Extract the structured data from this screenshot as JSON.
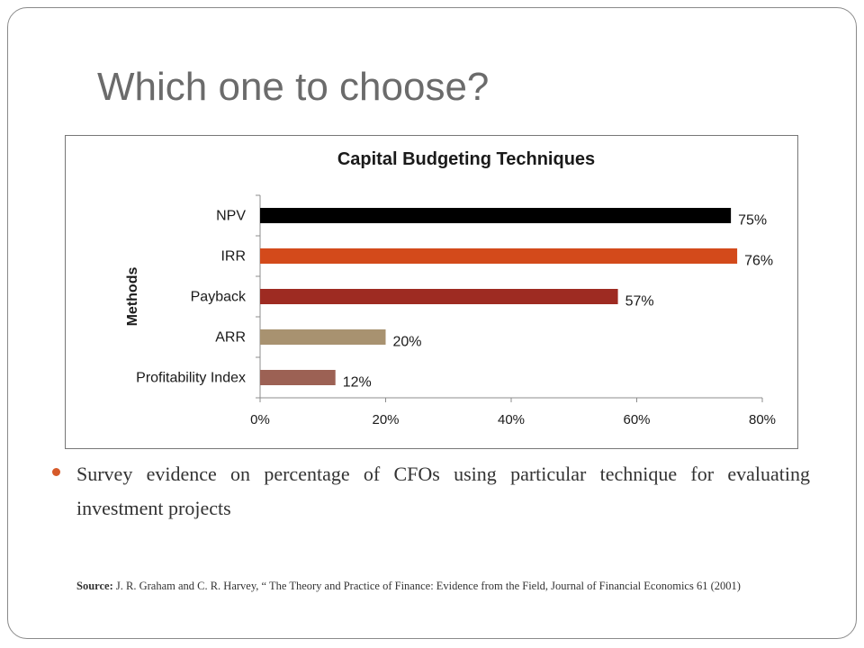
{
  "slide": {
    "title": "Which one to choose?",
    "bullet": "Survey evidence on percentage of CFOs using particular technique for evaluating investment projects",
    "source_label": "Source:",
    "source_text": "J. R. Graham and C. R. Harvey, “ The Theory and Practice of Finance: Evidence from the Field, Journal of Financial Economics 61 (2001)"
  },
  "colors": {
    "title": "#6b6b6b",
    "bullet_dot": "#d65a2a"
  },
  "chart_data": {
    "type": "bar",
    "orientation": "horizontal",
    "title": "Capital Budgeting Techniques",
    "xlabel": "",
    "ylabel": "Methods",
    "categories": [
      "NPV",
      "IRR",
      "Payback",
      "ARR",
      "Profitability Index"
    ],
    "values": [
      75,
      76,
      57,
      20,
      12
    ],
    "data_labels": [
      "75%",
      "76%",
      "57%",
      "20%",
      "12%"
    ],
    "bar_colors": [
      "#000000",
      "#d34a1b",
      "#9e2b22",
      "#a89270",
      "#9c6154"
    ],
    "xlim": [
      0,
      80
    ],
    "xticks": [
      0,
      20,
      40,
      60,
      80
    ],
    "xtick_labels": [
      "0%",
      "20%",
      "40%",
      "60%",
      "80%"
    ],
    "grid": false,
    "legend": "none"
  }
}
